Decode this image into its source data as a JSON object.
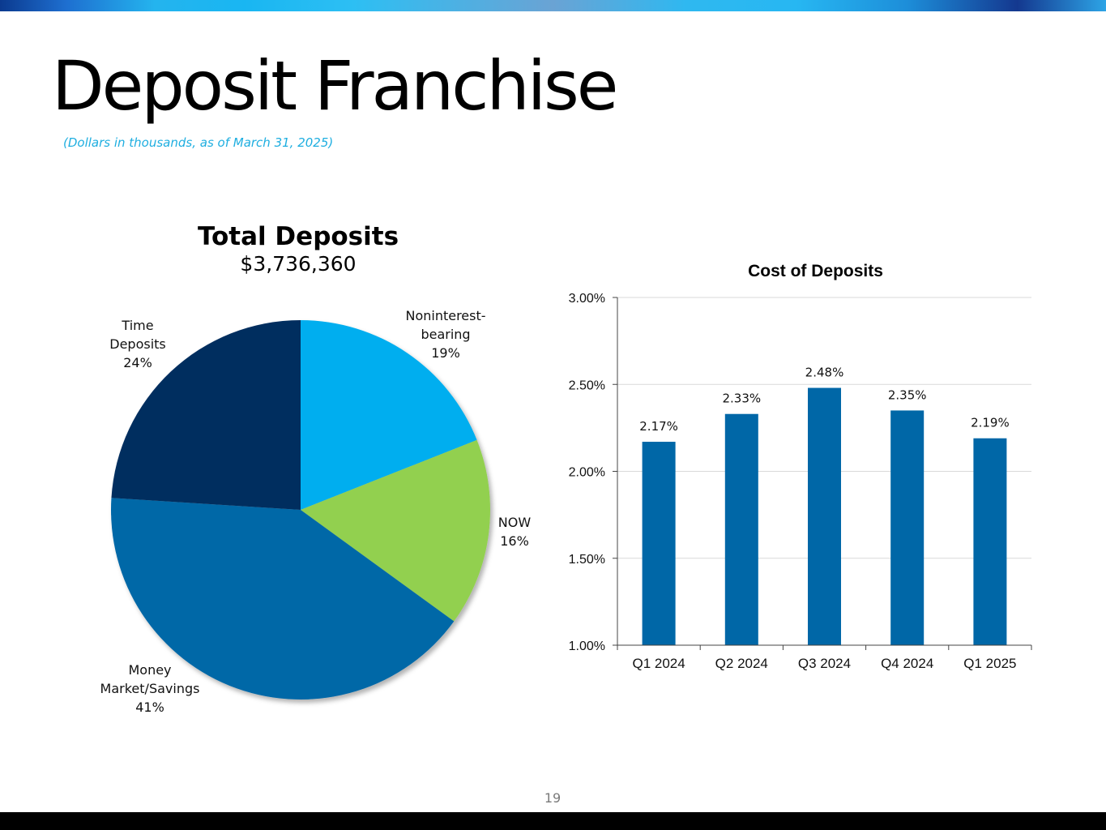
{
  "slide": {
    "title": "Deposit Franchise",
    "subtitle": "(Dollars in thousands, as of March 31, 2025)",
    "page_number": "19"
  },
  "chart_data": [
    {
      "type": "pie",
      "title": "Total Deposits",
      "total": "$3,736,360",
      "slices": [
        {
          "name": "Noninterest-bearing",
          "label_lines": [
            "Noninterest-",
            "bearing"
          ],
          "value": 19,
          "value_label": "19%",
          "color": "#00aeef"
        },
        {
          "name": "NOW",
          "label_lines": [
            "NOW"
          ],
          "value": 16,
          "value_label": "16%",
          "color": "#92d050"
        },
        {
          "name": "Money Market/Savings",
          "label_lines": [
            "Money",
            "Market/Savings"
          ],
          "value": 41,
          "value_label": "41%",
          "color": "#0067a7"
        },
        {
          "name": "Time Deposits",
          "label_lines": [
            "Time",
            "Deposits"
          ],
          "value": 24,
          "value_label": "24%",
          "color": "#012d5e"
        }
      ]
    },
    {
      "type": "bar",
      "title": "Cost of Deposits",
      "categories": [
        "Q1 2024",
        "Q2 2024",
        "Q3 2024",
        "Q4 2024",
        "Q1 2025"
      ],
      "values": [
        2.17,
        2.33,
        2.48,
        2.35,
        2.19
      ],
      "value_labels": [
        "2.17%",
        "2.33%",
        "2.48%",
        "2.35%",
        "2.19%"
      ],
      "ylim": [
        1.0,
        3.0
      ],
      "yticks": [
        1.0,
        1.5,
        2.0,
        2.5,
        3.0
      ],
      "ytick_labels": [
        "1.00%",
        "1.50%",
        "2.00%",
        "2.50%",
        "3.00%"
      ],
      "grid": true,
      "bar_color": "#0067a7"
    }
  ]
}
